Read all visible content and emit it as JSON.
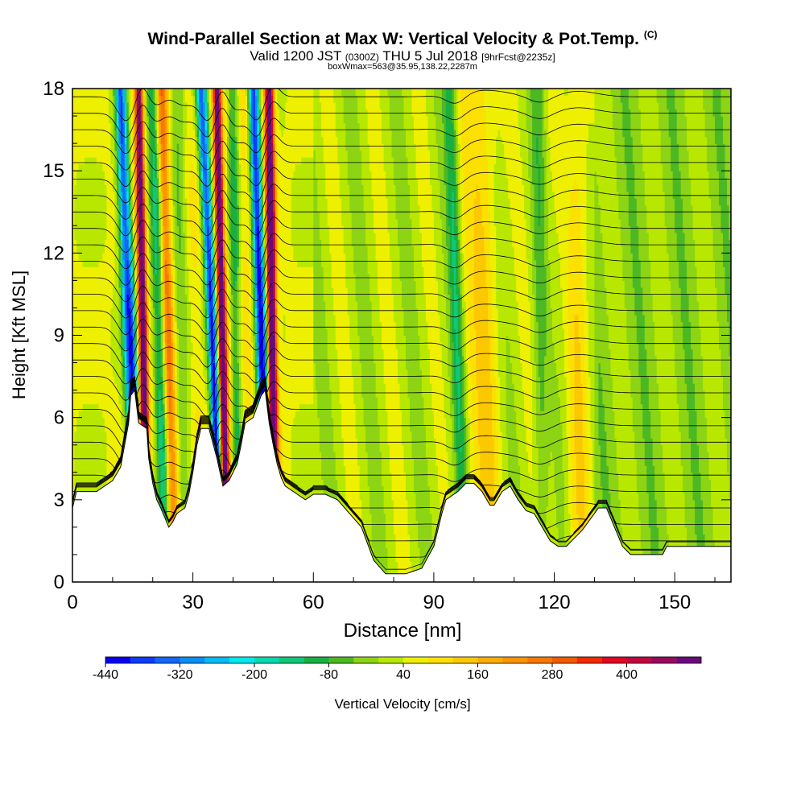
{
  "header": {
    "title": "Wind-Parallel Section at Max W: Vertical Velocity & Pot.Temp.",
    "copyright": "(C)",
    "valid_prefix": "Valid 1200 JST",
    "valid_utc": "(0300Z)",
    "valid_date": "THU 5 Jul 2018",
    "forecast": "[9hrFcst@2235z]",
    "box_info": "boxWmax=563@35.95,138.22,2287m"
  },
  "chart_data": {
    "type": "heatmap",
    "title": "Wind-Parallel Section at Max W: Vertical Velocity & Pot.Temp.",
    "xlabel": "Distance [nm]",
    "ylabel": "Height [Kft MSL]",
    "xlim": [
      0,
      164
    ],
    "ylim": [
      0,
      18
    ],
    "x_ticks": [
      0,
      30,
      60,
      90,
      120,
      150
    ],
    "x_tick_labels": [
      "0",
      "30",
      "60",
      "90",
      "120",
      "150"
    ],
    "y_ticks": [
      0,
      3,
      6,
      9,
      12,
      15,
      18
    ],
    "y_tick_labels": [
      "0",
      "3",
      "6",
      "9",
      "12",
      "15",
      "18"
    ],
    "colorbar": {
      "label": "Vertical Velocity [cm/s]",
      "levels": [
        -440,
        -400,
        -360,
        -320,
        -280,
        -240,
        -200,
        -160,
        -120,
        -80,
        -40,
        0,
        40,
        80,
        120,
        160,
        200,
        240,
        280,
        320,
        360,
        400,
        440,
        480
      ],
      "tick_labels": [
        "-440",
        "-320",
        "-200",
        "-80",
        "40",
        "160",
        "280",
        "400"
      ],
      "colors": [
        "#0a00f0",
        "#0f3cf5",
        "#1466f7",
        "#0b8ff5",
        "#00bdf2",
        "#00e8f0",
        "#08d8b0",
        "#10c878",
        "#18b040",
        "#4cb824",
        "#8cd414",
        "#b8e800",
        "#eef000",
        "#fce000",
        "#fcc800",
        "#fcae00",
        "#fc9400",
        "#f87800",
        "#f45a00",
        "#f02c00",
        "#e00824",
        "#c00840",
        "#9a0a5c",
        "#6a0a7a"
      ]
    },
    "terrain_kft": [
      [
        0,
        2.7
      ],
      [
        1,
        3.3
      ],
      [
        6,
        3.3
      ],
      [
        8,
        3.5
      ],
      [
        10,
        3.7
      ],
      [
        12,
        4.2
      ],
      [
        13,
        5.0
      ],
      [
        14,
        5.8
      ],
      [
        14.5,
        6.8
      ],
      [
        15.5,
        7.0
      ],
      [
        16.5,
        5.8
      ],
      [
        18.5,
        5.6
      ],
      [
        19,
        4.5
      ],
      [
        20,
        3.6
      ],
      [
        21,
        3.0
      ],
      [
        22,
        2.7
      ],
      [
        24,
        2.0
      ],
      [
        25,
        2.2
      ],
      [
        26,
        2.5
      ],
      [
        28,
        2.7
      ],
      [
        29,
        3.2
      ],
      [
        30,
        4.0
      ],
      [
        31,
        5.0
      ],
      [
        32,
        5.6
      ],
      [
        34,
        5.6
      ],
      [
        36,
        4.5
      ],
      [
        37.5,
        3.5
      ],
      [
        39,
        3.7
      ],
      [
        41,
        4.3
      ],
      [
        42,
        5.0
      ],
      [
        43,
        5.8
      ],
      [
        45,
        6.0
      ],
      [
        47,
        6.8
      ],
      [
        48,
        7.0
      ],
      [
        49,
        5.8
      ],
      [
        50,
        5.0
      ],
      [
        51,
        4.3
      ],
      [
        52,
        3.8
      ],
      [
        53,
        3.5
      ],
      [
        55,
        3.3
      ],
      [
        58,
        3.0
      ],
      [
        60,
        3.2
      ],
      [
        63,
        3.2
      ],
      [
        66,
        3.0
      ],
      [
        69,
        2.5
      ],
      [
        72,
        2.0
      ],
      [
        75,
        0.8
      ],
      [
        78,
        0.3
      ],
      [
        83,
        0.3
      ],
      [
        87,
        0.5
      ],
      [
        90,
        1.3
      ],
      [
        92,
        2.5
      ],
      [
        93,
        3.0
      ],
      [
        96,
        3.3
      ],
      [
        98,
        3.6
      ],
      [
        100,
        3.6
      ],
      [
        102,
        3.3
      ],
      [
        104,
        2.8
      ],
      [
        105,
        2.8
      ],
      [
        107,
        3.3
      ],
      [
        109,
        3.5
      ],
      [
        111,
        3.0
      ],
      [
        113,
        2.6
      ],
      [
        115,
        2.5
      ],
      [
        117,
        2.0
      ],
      [
        119,
        1.5
      ],
      [
        121,
        1.3
      ],
      [
        123,
        1.3
      ],
      [
        125,
        1.6
      ],
      [
        127,
        1.9
      ],
      [
        129,
        2.3
      ],
      [
        131,
        2.7
      ],
      [
        133,
        2.7
      ],
      [
        135,
        2.0
      ],
      [
        137,
        1.3
      ],
      [
        139,
        1.0
      ],
      [
        147,
        1.0
      ],
      [
        148,
        1.3
      ],
      [
        153,
        1.3
      ],
      [
        164,
        1.3
      ]
    ],
    "wave_features": [
      {
        "x_base": 15,
        "x_top": 12,
        "w": 1.4,
        "kind": "down",
        "peak": -440
      },
      {
        "x_base": 18,
        "x_top": 16.5,
        "w": 1.0,
        "kind": "up",
        "peak": 440
      },
      {
        "x_base": 23,
        "x_top": 20,
        "w": 1.6,
        "kind": "down",
        "peak": -160
      },
      {
        "x_base": 25,
        "x_top": 22,
        "w": 1.4,
        "kind": "up",
        "peak": 200
      },
      {
        "x_base": 28,
        "x_top": 26,
        "w": 2.0,
        "kind": "down",
        "peak": -120
      },
      {
        "x_base": 36,
        "x_top": 32,
        "w": 1.3,
        "kind": "down",
        "peak": -400
      },
      {
        "x_base": 38,
        "x_top": 36,
        "w": 1.0,
        "kind": "up",
        "peak": 440
      },
      {
        "x_base": 41,
        "x_top": 40,
        "w": 1.4,
        "kind": "down",
        "peak": -160
      },
      {
        "x_base": 47.5,
        "x_top": 45,
        "w": 1.3,
        "kind": "down",
        "peak": -440
      },
      {
        "x_base": 50,
        "x_top": 49,
        "w": 1.1,
        "kind": "up",
        "peak": 480
      },
      {
        "x_base": 97,
        "x_top": 94,
        "w": 1.5,
        "kind": "down",
        "peak": -120
      },
      {
        "x_base": 103,
        "x_top": 102,
        "w": 4.0,
        "kind": "up",
        "peak": 120
      },
      {
        "x_base": 117,
        "x_top": 116,
        "w": 1.8,
        "kind": "down",
        "peak": -80
      },
      {
        "x_base": 126,
        "x_top": 126,
        "w": 3.0,
        "kind": "up",
        "peak": 100
      }
    ],
    "isentrope_base_heights_kft": [
      0.3,
      0.9,
      1.5,
      2.1,
      2.7,
      3.3,
      3.9,
      4.5,
      5.1,
      5.7,
      6.3,
      6.9,
      7.5,
      8.1,
      8.7,
      9.3,
      9.9,
      10.5,
      11.1,
      11.7,
      12.3,
      12.9,
      13.5,
      14.1,
      14.7,
      15.3,
      15.9,
      16.5,
      17.1,
      17.7
    ]
  }
}
